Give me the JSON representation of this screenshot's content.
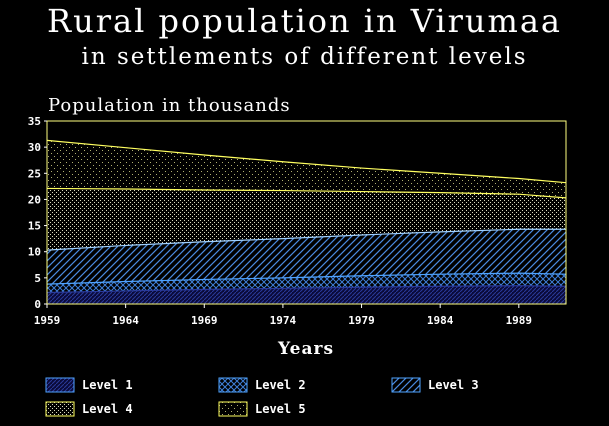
{
  "chart_data": {
    "type": "area",
    "title": "Rural population in Virumaa",
    "subtitle": "in settlements of different levels",
    "ylabel": "Population in thousands",
    "xlabel": "Years",
    "x": [
      1959,
      1964,
      1969,
      1974,
      1979,
      1984,
      1989,
      1992
    ],
    "xticks": [
      1959,
      1964,
      1969,
      1974,
      1979,
      1984,
      1989
    ],
    "xlim": [
      1959,
      1992
    ],
    "ylim": [
      0,
      35
    ],
    "yticks": [
      0,
      5,
      10,
      15,
      20,
      25,
      30,
      35
    ],
    "stacked": true,
    "series_cumulative_note": "values are cumulative boundary heights (top of each stacked band)",
    "series": [
      {
        "name": "Level 1",
        "values": [
          2.2,
          2.5,
          2.8,
          3.0,
          3.2,
          3.4,
          3.5,
          3.4
        ],
        "color": "#1a237e",
        "pattern": "dense-dark"
      },
      {
        "name": "Level 2",
        "values": [
          3.8,
          4.3,
          4.7,
          5.0,
          5.4,
          5.7,
          5.9,
          5.7
        ],
        "color": "#4fa3ff",
        "pattern": "cross-hatch"
      },
      {
        "name": "Level 3",
        "values": [
          10.3,
          11.2,
          11.9,
          12.5,
          13.2,
          13.8,
          14.3,
          14.3
        ],
        "color": "#4fa3ff",
        "pattern": "diagonal"
      },
      {
        "name": "Level 4",
        "values": [
          22.1,
          22.0,
          21.8,
          21.7,
          21.5,
          21.3,
          21.0,
          20.3
        ],
        "color": "#ffff00",
        "pattern": "dots"
      },
      {
        "name": "Level 5",
        "values": [
          31.3,
          29.9,
          28.5,
          27.2,
          26.0,
          25.0,
          24.0,
          23.2
        ],
        "color": "#ffff00",
        "pattern": "sparse-dots"
      }
    ],
    "grid": false,
    "legend_position": "bottom"
  },
  "colors": {
    "background": "#000000",
    "axis": "#ffffff",
    "plot_border": "#ffff80"
  }
}
